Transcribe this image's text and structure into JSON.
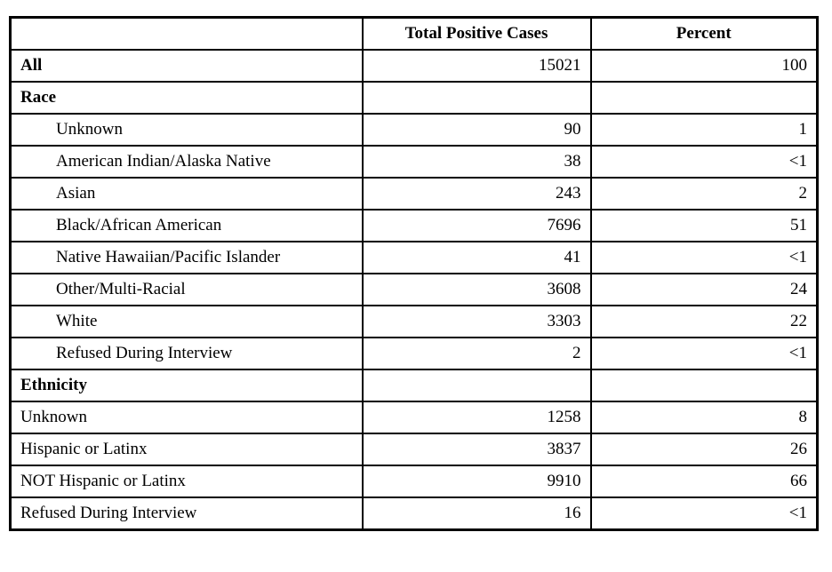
{
  "table": {
    "columns": {
      "label": "",
      "cases": "Total Positive Cases",
      "percent": "Percent"
    },
    "rows": [
      {
        "label": "All",
        "cases": "15021",
        "percent": "100",
        "style": "bold"
      },
      {
        "label": "Race",
        "cases": "",
        "percent": "",
        "style": "bold"
      },
      {
        "label": "Unknown",
        "cases": "90",
        "percent": "1",
        "style": "indent"
      },
      {
        "label": "American Indian/Alaska Native",
        "cases": "38",
        "percent": "<1",
        "style": "indent"
      },
      {
        "label": "Asian",
        "cases": "243",
        "percent": "2",
        "style": "indent"
      },
      {
        "label": "Black/African American",
        "cases": "7696",
        "percent": "51",
        "style": "indent"
      },
      {
        "label": "Native Hawaiian/Pacific Islander",
        "cases": "41",
        "percent": "<1",
        "style": "indent"
      },
      {
        "label": "Other/Multi-Racial",
        "cases": "3608",
        "percent": "24",
        "style": "indent"
      },
      {
        "label": "White",
        "cases": "3303",
        "percent": "22",
        "style": "indent"
      },
      {
        "label": "Refused During Interview",
        "cases": "2",
        "percent": "<1",
        "style": "indent"
      },
      {
        "label": "Ethnicity",
        "cases": "",
        "percent": "",
        "style": "bold"
      },
      {
        "label": "Unknown",
        "cases": "1258",
        "percent": "8",
        "style": "plain"
      },
      {
        "label": "Hispanic or Latinx",
        "cases": "3837",
        "percent": "26",
        "style": "plain"
      },
      {
        "label": "NOT Hispanic or Latinx",
        "cases": "9910",
        "percent": "66",
        "style": "plain"
      },
      {
        "label": "Refused During Interview",
        "cases": "16",
        "percent": "<1",
        "style": "plain"
      }
    ]
  },
  "chart_data": {
    "type": "table",
    "title": "",
    "columns": [
      "",
      "Total Positive Cases",
      "Percent"
    ],
    "rows": [
      [
        "All",
        15021,
        "100"
      ],
      [
        "Race",
        null,
        null
      ],
      [
        "Unknown",
        90,
        "1"
      ],
      [
        "American Indian/Alaska Native",
        38,
        "<1"
      ],
      [
        "Asian",
        243,
        "2"
      ],
      [
        "Black/African American",
        7696,
        "51"
      ],
      [
        "Native Hawaiian/Pacific Islander",
        41,
        "<1"
      ],
      [
        "Other/Multi-Racial",
        3608,
        "24"
      ],
      [
        "White",
        3303,
        "22"
      ],
      [
        "Refused During Interview",
        2,
        "<1"
      ],
      [
        "Ethnicity",
        null,
        null
      ],
      [
        "Unknown",
        1258,
        "8"
      ],
      [
        "Hispanic or Latinx",
        3837,
        "26"
      ],
      [
        "NOT Hispanic or Latinx",
        9910,
        "66"
      ],
      [
        "Refused During Interview",
        16,
        "<1"
      ]
    ]
  },
  "colors": {
    "border": "#000000",
    "text": "#000000",
    "background": "#ffffff"
  }
}
